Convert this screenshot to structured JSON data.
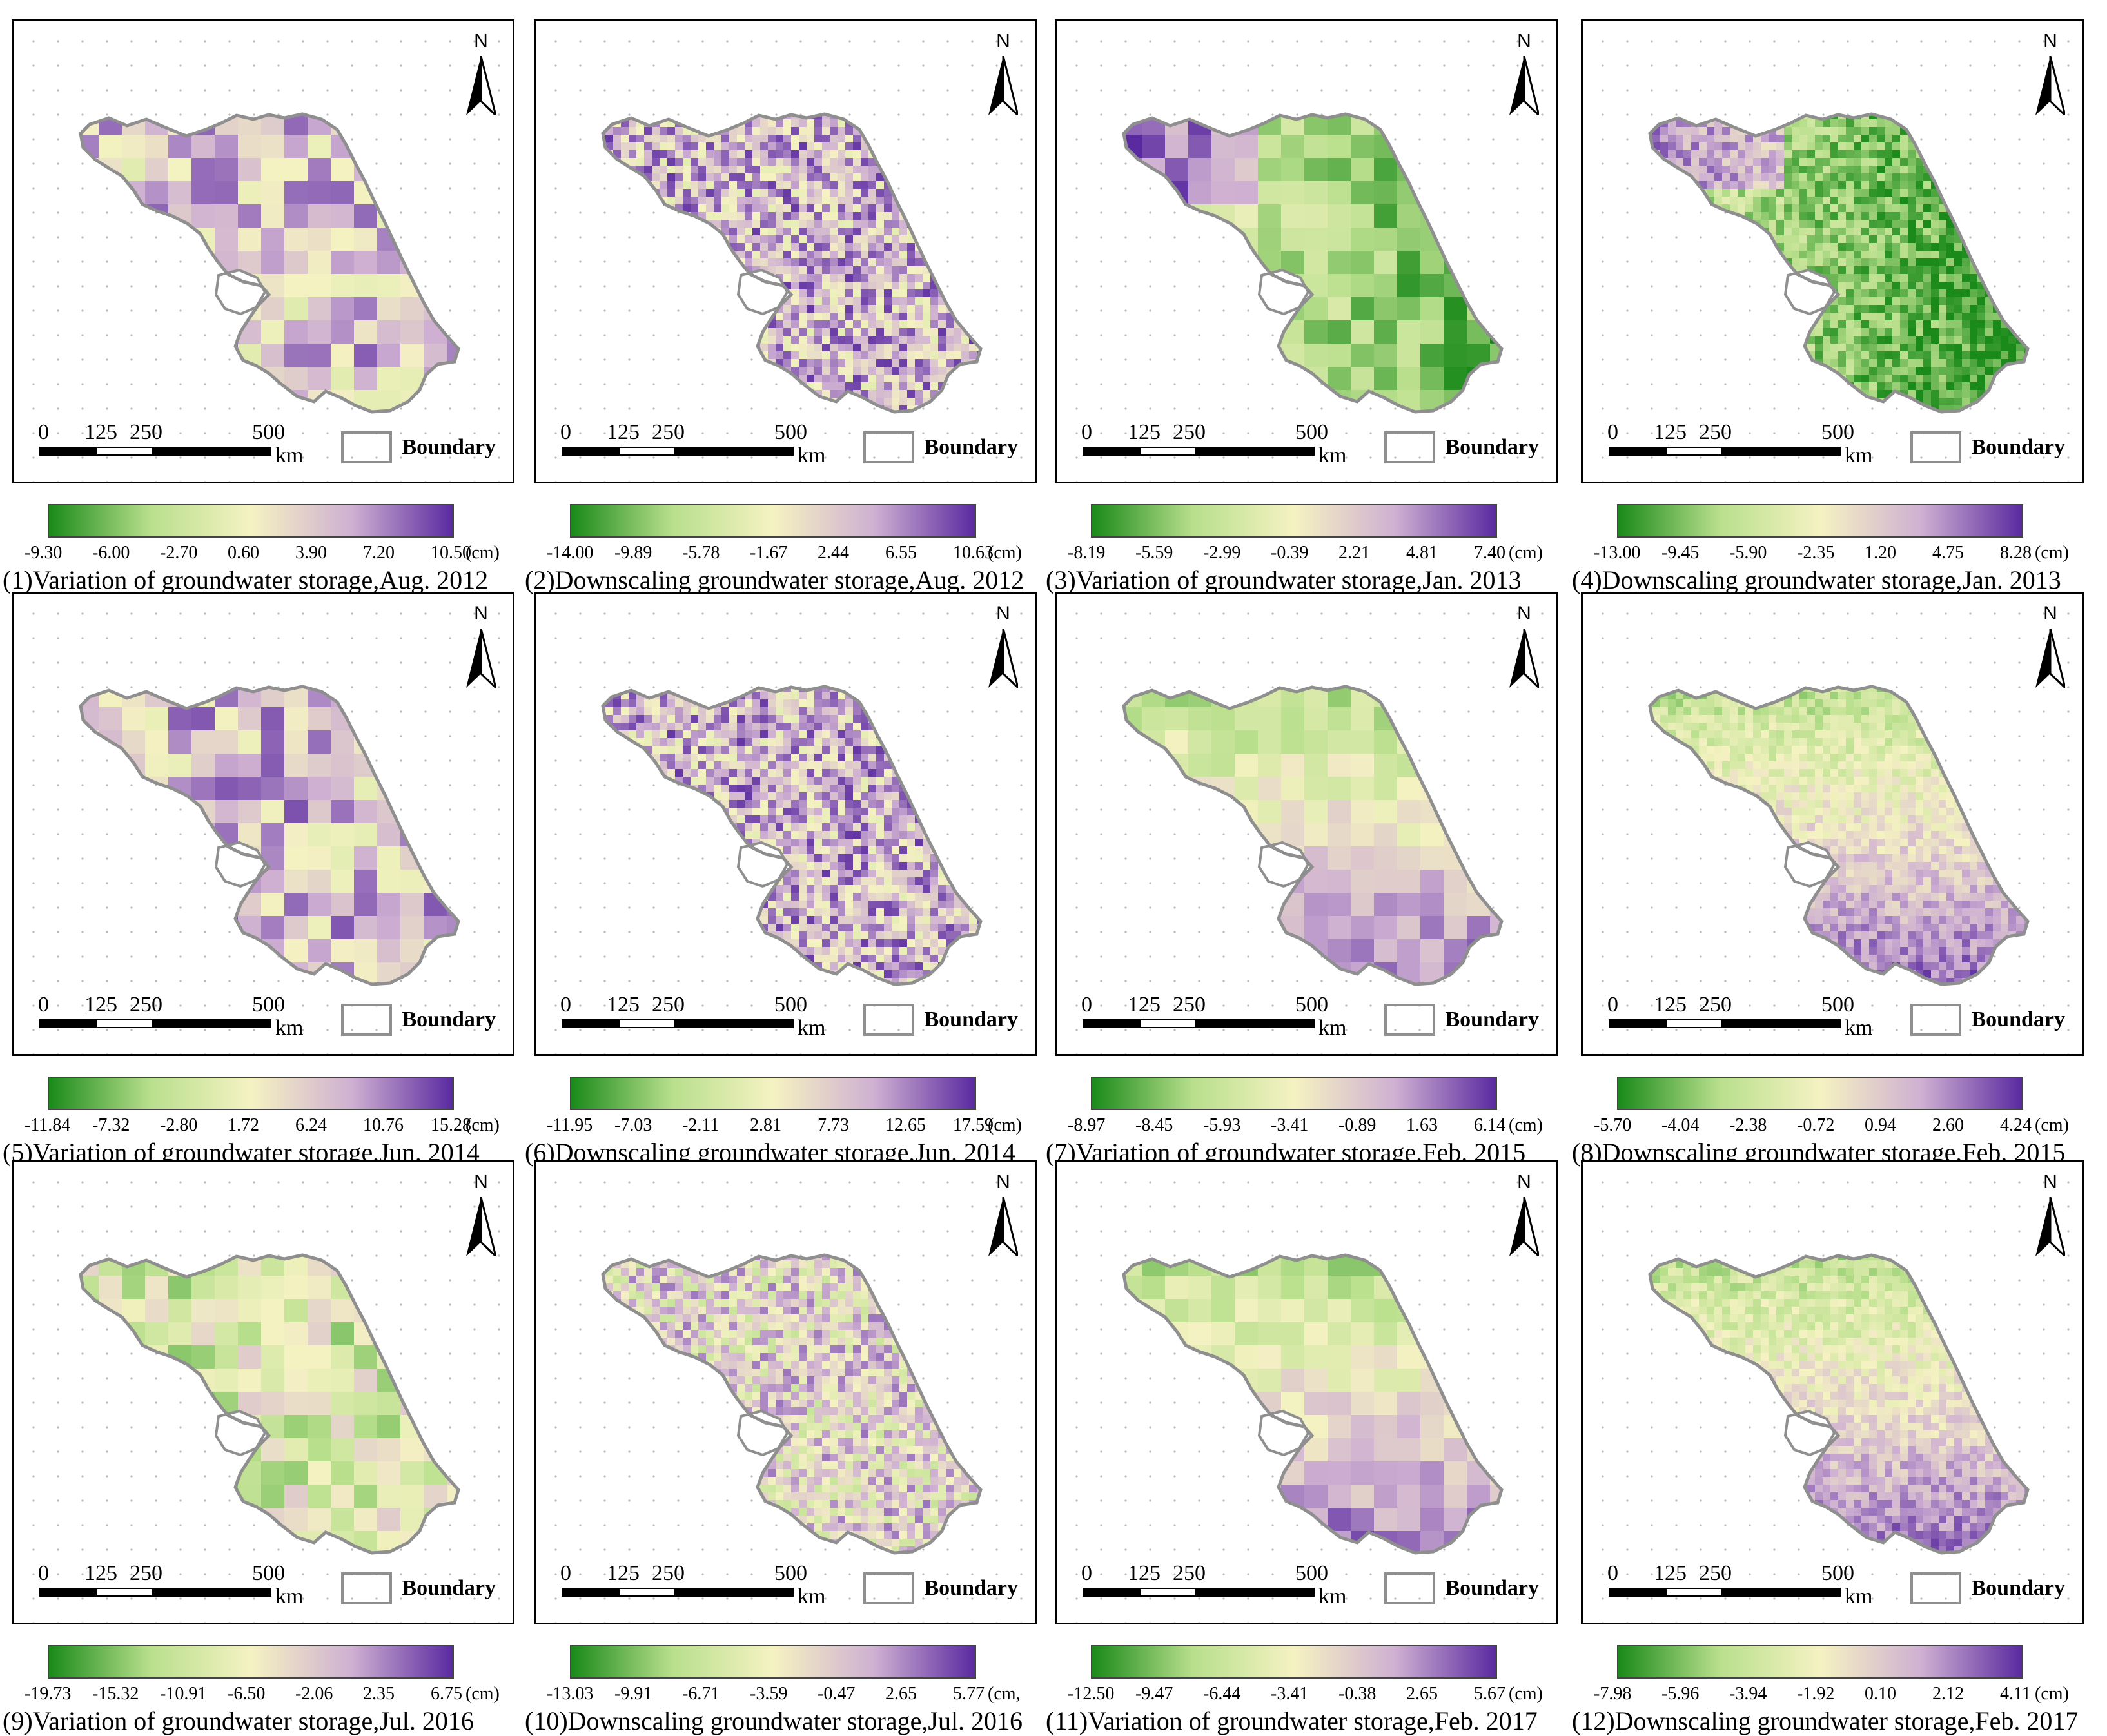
{
  "colors": {
    "green_dark": "#1a8a1a",
    "green_light": "#b8df8c",
    "cream": "#f5f2c2",
    "purple_light": "#cfb0d2",
    "purple_dark": "#5a2aa0",
    "boundary": "#8f8f8f"
  },
  "common": {
    "north_label": "N",
    "scale_ticks": [
      "0",
      "125",
      "250",
      "500"
    ],
    "scale_unit": "km",
    "boundary_label": "Boundary",
    "unit_label": "(cm)"
  },
  "panels": [
    {
      "caption": "(1)Variation of groundwater storage,Aug. 2012",
      "ticks": [
        "-9.30",
        "-6.00",
        "-2.70",
        "0.60",
        "3.90",
        "7.20",
        "10.50"
      ],
      "unit": "(cm)",
      "kind": "grid",
      "balance": 0.35
    },
    {
      "caption": "(2)Downscaling groundwater storage,Aug. 2012",
      "ticks": [
        "-14.00",
        "-9.89",
        "-5.78",
        "-1.67",
        "2.44",
        "6.55",
        "10.63"
      ],
      "unit": "(cm)",
      "kind": "fine",
      "balance": 0.45
    },
    {
      "caption": "(3)Variation of groundwater storage,Jan. 2013",
      "ticks": [
        "-8.19",
        "-5.59",
        "-2.99",
        "-0.39",
        "2.21",
        "4.81",
        "7.40"
      ],
      "unit": "(cm)",
      "kind": "grid",
      "balance": -0.35
    },
    {
      "caption": "(4)Downscaling groundwater storage,Jan. 2013",
      "ticks": [
        "-13.00",
        "-9.45",
        "-5.90",
        "-2.35",
        "1.20",
        "4.75",
        "8.28"
      ],
      "unit": "(cm)",
      "kind": "fine",
      "balance": -0.7
    },
    {
      "caption": "(5)Variation of groundwater storage,Jun. 2014",
      "ticks": [
        "-11.84",
        "-7.32",
        "-2.80",
        "1.72",
        "6.24",
        "10.76",
        "15.28"
      ],
      "unit": "(cm)",
      "kind": "grid",
      "balance": 0.4
    },
    {
      "caption": "(6)Downscaling groundwater storage,Jun. 2014",
      "ticks": [
        "-11.95",
        "-7.03",
        "-2.11",
        "2.81",
        "7.73",
        "12.65",
        "17.59"
      ],
      "unit": "(cm)",
      "kind": "fine",
      "balance": 0.45
    },
    {
      "caption": "(7)Variation of groundwater storage,Feb. 2015",
      "ticks": [
        "-8.97",
        "-8.45",
        "-5.93",
        "-3.41",
        "-0.89",
        "1.63",
        "6.14"
      ],
      "unit": "(cm)",
      "kind": "grid",
      "balance": 0.0
    },
    {
      "caption": "(8)Downscaling groundwater storage,Feb. 2015",
      "ticks": [
        "-5.70",
        "-4.04",
        "-2.38",
        "-0.72",
        "0.94",
        "2.60",
        "4.24"
      ],
      "unit": "(cm)",
      "kind": "fine",
      "balance": 0.0
    },
    {
      "caption": "(9)Variation of groundwater storage,Jul. 2016",
      "ticks": [
        "-19.73",
        "-15.32",
        "-10.91",
        "-6.50",
        "-2.06",
        "2.35",
        "6.75"
      ],
      "unit": "(cm)",
      "kind": "grid",
      "balance": -0.2
    },
    {
      "caption": "(10)Downscaling groundwater storage,Jul. 2016",
      "ticks": [
        "-13.03",
        "-9.91",
        "-6.71",
        "-3.59",
        "-0.47",
        "2.65",
        "5.77"
      ],
      "unit": "(cm,",
      "kind": "fine",
      "balance": 0.2
    },
    {
      "caption": "(11)Variation of groundwater storage,Feb. 2017",
      "ticks": [
        "-12.50",
        "-9.47",
        "-6.44",
        "-3.41",
        "-0.38",
        "2.65",
        "5.67"
      ],
      "unit": "(cm)",
      "kind": "grid",
      "balance": -0.1
    },
    {
      "caption": "(12)Downscaling groundwater storage,Feb. 2017",
      "ticks": [
        "-7.98",
        "-5.96",
        "-3.94",
        "-1.92",
        "0.10",
        "2.12",
        "4.11"
      ],
      "unit": "(cm)",
      "kind": "fine",
      "balance": -0.3
    }
  ]
}
